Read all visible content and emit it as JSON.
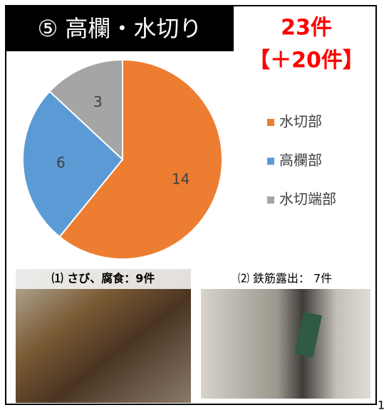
{
  "chart_data": {
    "type": "pie",
    "title": "⑤ 高欄・水切り",
    "annotations": [
      "23件",
      "【＋20件】"
    ],
    "categories": [
      "水切部",
      "高欄部",
      "水切端部"
    ],
    "values": [
      14,
      6,
      3
    ],
    "colors": [
      "#ed7d31",
      "#5b9bd5",
      "#a5a5a5"
    ],
    "legend": "right"
  },
  "photos": [
    {
      "caption": "⑴ さび、腐食：9件"
    },
    {
      "caption": "⑵ 鉄筋露出： 7件"
    }
  ],
  "page_number": "1"
}
